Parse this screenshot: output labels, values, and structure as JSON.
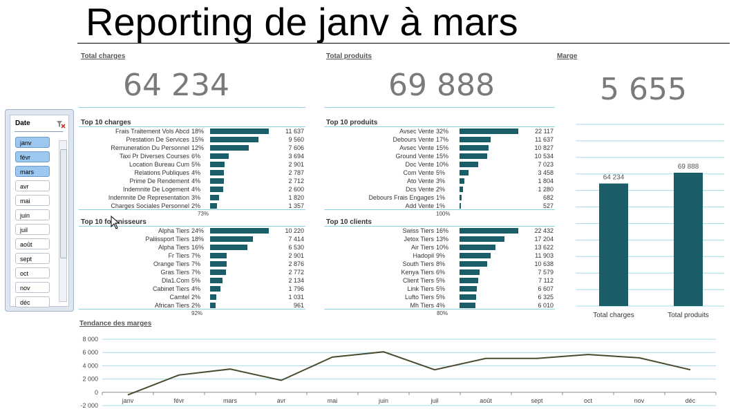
{
  "title": "Reporting de janv à mars",
  "kpis": {
    "charges": {
      "label": "Total charges",
      "value": "64 234"
    },
    "produits": {
      "label": "Total produits",
      "value": "69 888"
    },
    "marge": {
      "label": "Marge",
      "value": "5 655"
    }
  },
  "slicer": {
    "title": "Date",
    "items": [
      {
        "label": "janv",
        "selected": true
      },
      {
        "label": "févr",
        "selected": true
      },
      {
        "label": "mars",
        "selected": true
      },
      {
        "label": "avr",
        "selected": false
      },
      {
        "label": "mai",
        "selected": false
      },
      {
        "label": "juin",
        "selected": false
      },
      {
        "label": "juil",
        "selected": false
      },
      {
        "label": "août",
        "selected": false
      },
      {
        "label": "sept",
        "selected": false
      },
      {
        "label": "oct",
        "selected": false
      },
      {
        "label": "nov",
        "selected": false
      },
      {
        "label": "déc",
        "selected": false
      }
    ]
  },
  "top_charges": {
    "title": "Top 10 charges",
    "total_pct": "73%",
    "rows": [
      {
        "label": "Frais Traitement Vols Abcd",
        "pct": "18%",
        "value": "11 637",
        "num": 11637
      },
      {
        "label": "Prestation De Services",
        "pct": "15%",
        "value": "9 560",
        "num": 9560
      },
      {
        "label": "Remuneration Du Personnel",
        "pct": "12%",
        "value": "7 606",
        "num": 7606
      },
      {
        "label": "Taxi Pr Diverses Courses",
        "pct": "6%",
        "value": "3 694",
        "num": 3694
      },
      {
        "label": "Location Bureau Cum",
        "pct": "5%",
        "value": "2 901",
        "num": 2901
      },
      {
        "label": "Relations Publiques",
        "pct": "4%",
        "value": "2 787",
        "num": 2787
      },
      {
        "label": "Prime De Rendement",
        "pct": "4%",
        "value": "2 712",
        "num": 2712
      },
      {
        "label": "Indemnite De Logement",
        "pct": "4%",
        "value": "2 600",
        "num": 2600
      },
      {
        "label": "Indemnite De Representation",
        "pct": "3%",
        "value": "1 820",
        "num": 1820
      },
      {
        "label": "Charges Sociales Personnel",
        "pct": "2%",
        "value": "1 357",
        "num": 1357
      }
    ]
  },
  "top_produits": {
    "title": "Top 10 produits",
    "total_pct": "100%",
    "rows": [
      {
        "label": "Avsec Vente",
        "pct": "32%",
        "value": "22 117",
        "num": 22117
      },
      {
        "label": "Debours Vente",
        "pct": "17%",
        "value": "11 637",
        "num": 11637
      },
      {
        "label": "Avsec Vente",
        "pct": "15%",
        "value": "10 827",
        "num": 10827
      },
      {
        "label": "Ground Vente",
        "pct": "15%",
        "value": "10 534",
        "num": 10534
      },
      {
        "label": "Doc Vente",
        "pct": "10%",
        "value": "7 023",
        "num": 7023
      },
      {
        "label": "Com Vente",
        "pct": "5%",
        "value": "3 458",
        "num": 3458
      },
      {
        "label": "Ato Vente",
        "pct": "3%",
        "value": "1 804",
        "num": 1804
      },
      {
        "label": "Dcs Vente",
        "pct": "2%",
        "value": "1 280",
        "num": 1280
      },
      {
        "label": "Debours Frais Engages",
        "pct": "1%",
        "value": "682",
        "num": 682
      },
      {
        "label": "Add Vente",
        "pct": "1%",
        "value": "527",
        "num": 527
      }
    ]
  },
  "top_fournisseurs": {
    "title": "Top 10 fournisseurs",
    "total_pct": "92%",
    "rows": [
      {
        "label": "Alpha Tiers",
        "pct": "24%",
        "value": "10 220",
        "num": 10220
      },
      {
        "label": "Paliissport Tiers",
        "pct": "18%",
        "value": "7 414",
        "num": 7414
      },
      {
        "label": "Alpha Tiers",
        "pct": "16%",
        "value": "6 530",
        "num": 6530
      },
      {
        "label": "Fr Tiers",
        "pct": "7%",
        "value": "2 901",
        "num": 2901
      },
      {
        "label": "Orange Tiers",
        "pct": "7%",
        "value": "2 876",
        "num": 2876
      },
      {
        "label": "Gras Tiers",
        "pct": "7%",
        "value": "2 772",
        "num": 2772
      },
      {
        "label": "Dla1.Com",
        "pct": "5%",
        "value": "2 134",
        "num": 2134
      },
      {
        "label": "Cabinet Tiers",
        "pct": "4%",
        "value": "1 796",
        "num": 1796
      },
      {
        "label": "Camtel",
        "pct": "2%",
        "value": "1 031",
        "num": 1031
      },
      {
        "label": "African Tiers",
        "pct": "2%",
        "value": "961",
        "num": 961
      }
    ]
  },
  "top_clients": {
    "title": "Top 10 clients",
    "total_pct": "80%",
    "rows": [
      {
        "label": "Swiss Tiers",
        "pct": "16%",
        "value": "22 432",
        "num": 22432
      },
      {
        "label": "Jetox Tiers",
        "pct": "13%",
        "value": "17 204",
        "num": 17204
      },
      {
        "label": "Air Tiers",
        "pct": "10%",
        "value": "13 622",
        "num": 13622
      },
      {
        "label": "Hadopil",
        "pct": "9%",
        "value": "11 903",
        "num": 11903
      },
      {
        "label": "South Tiers",
        "pct": "8%",
        "value": "10 638",
        "num": 10638
      },
      {
        "label": "Kenya Tiers",
        "pct": "6%",
        "value": "7 579",
        "num": 7579
      },
      {
        "label": "Client Tiers",
        "pct": "5%",
        "value": "7 112",
        "num": 7112
      },
      {
        "label": "Link Tiers",
        "pct": "5%",
        "value": "6 607",
        "num": 6607
      },
      {
        "label": "Lufto Tiers",
        "pct": "5%",
        "value": "6 325",
        "num": 6325
      },
      {
        "label": "Mh Tiers",
        "pct": "4%",
        "value": "6 010",
        "num": 6010
      }
    ]
  },
  "colors": {
    "bar": "#1b5e6a",
    "grid": "#a6dbe8",
    "line": "#4a4a30",
    "slicer_selected": "#9cc8f0"
  },
  "chart_data": [
    {
      "type": "bar",
      "categories": [
        "Total charges",
        "Total produits"
      ],
      "values": [
        64234,
        69888
      ],
      "data_labels": [
        "64 234",
        "69 888"
      ],
      "ylim": [
        0,
        80000
      ],
      "grid": true
    },
    {
      "type": "line",
      "title": "Tendance  des marges",
      "x": [
        "janv",
        "févr",
        "mars",
        "avr",
        "mai",
        "juin",
        "juil",
        "août",
        "sept",
        "oct",
        "nov",
        "déc"
      ],
      "y": [
        -400,
        2600,
        3500,
        1800,
        5300,
        6100,
        3400,
        5100,
        5100,
        5700,
        5200,
        3400
      ],
      "yticks": [
        "8 000",
        "6 000",
        "4 000",
        "2 000",
        "0",
        "-2 000"
      ],
      "ylim": [
        -2000,
        8000
      ],
      "grid": true
    }
  ]
}
